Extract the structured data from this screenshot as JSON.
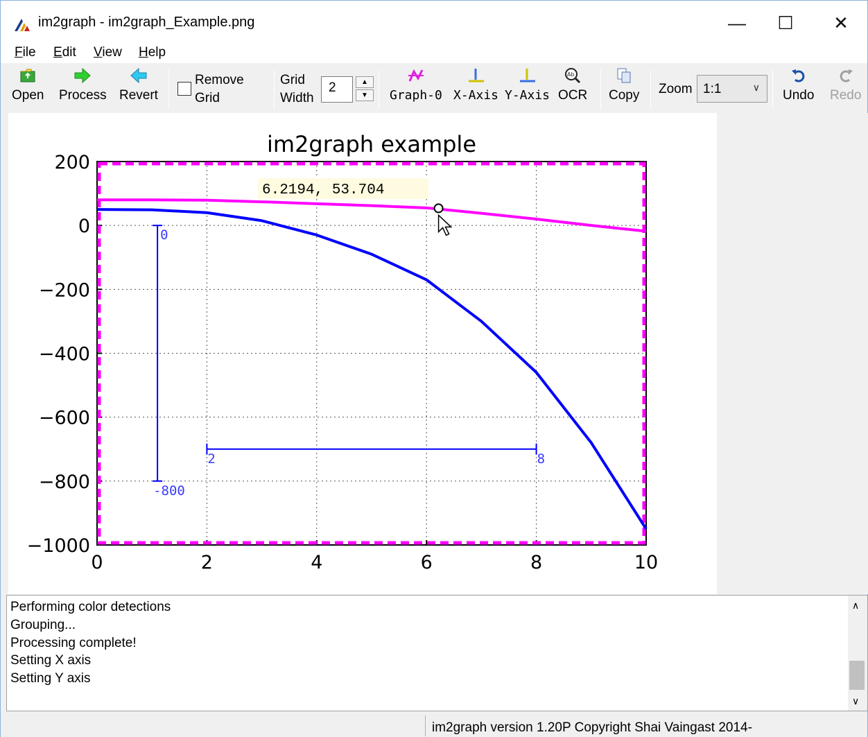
{
  "window": {
    "title": "im2graph - im2graph_Example.png",
    "minimize_glyph": "—",
    "maximize_glyph": "☐",
    "close_glyph": "✕"
  },
  "menu": {
    "file": {
      "accel": "F",
      "rest": "ile"
    },
    "edit": {
      "accel": "E",
      "rest": "dit"
    },
    "view": {
      "accel": "V",
      "rest": "iew"
    },
    "help": {
      "accel": "H",
      "rest": "elp"
    }
  },
  "toolbar": {
    "open": "Open",
    "process": "Process",
    "revert": "Revert",
    "remove_grid_line1": "Remove",
    "remove_grid_line2": "Grid",
    "remove_grid_checked": false,
    "grid_width_line1": "Grid",
    "grid_width_line2": "Width",
    "grid_width_value": "2",
    "graph0": "Graph-0",
    "x_axis": "X-Axis",
    "y_axis": "Y-Axis",
    "ocr": "OCR",
    "copy": "Copy",
    "zoom_label": "Zoom",
    "zoom_value": "1:1",
    "undo": "Undo",
    "redo": "Redo",
    "redo_enabled": false
  },
  "chart_data": {
    "type": "line",
    "title": "im2graph example",
    "xlabel": "",
    "ylabel": "",
    "xlim": [
      0,
      10
    ],
    "ylim": [
      -1000,
      200
    ],
    "xticks": [
      "0",
      "2",
      "4",
      "6",
      "8",
      "10"
    ],
    "yticks": [
      "200",
      "0",
      "−200",
      "−400",
      "−600",
      "−800",
      "−1000"
    ],
    "grid": true,
    "series": [
      {
        "color": "#0000ff",
        "x": [
          0,
          1,
          2,
          3,
          4,
          5,
          6,
          7,
          8,
          9,
          10
        ],
        "y": [
          50,
          49,
          40,
          15,
          -30,
          -90,
          -170,
          -300,
          -460,
          -680,
          -950
        ]
      },
      {
        "color": "#ff00ff",
        "x": [
          0,
          1,
          2,
          3,
          4,
          5,
          6,
          7,
          8,
          9,
          10
        ],
        "y": [
          80,
          80,
          79,
          74,
          68,
          62,
          55,
          38,
          20,
          0,
          -18
        ]
      }
    ],
    "detected_box_color": "#ff00ff",
    "x_axis_marker": {
      "from": 2,
      "to": 8,
      "at_y": -700,
      "from_label": "2",
      "to_label": "8"
    },
    "y_axis_marker": {
      "from": 0,
      "to": -800,
      "at_x": 1.1,
      "from_label": "0",
      "to_label": "-800"
    },
    "cursor_readout": "6.2194, 53.704",
    "cursor_point": {
      "x": 6.2194,
      "y": 53.704
    }
  },
  "log": {
    "lines": [
      "Performing color detections",
      "Grouping...",
      "Processing complete!",
      "Setting X axis",
      "Setting Y axis"
    ]
  },
  "status": {
    "text": "im2graph version 1.20P Copyright Shai Vaingast 2014-"
  }
}
